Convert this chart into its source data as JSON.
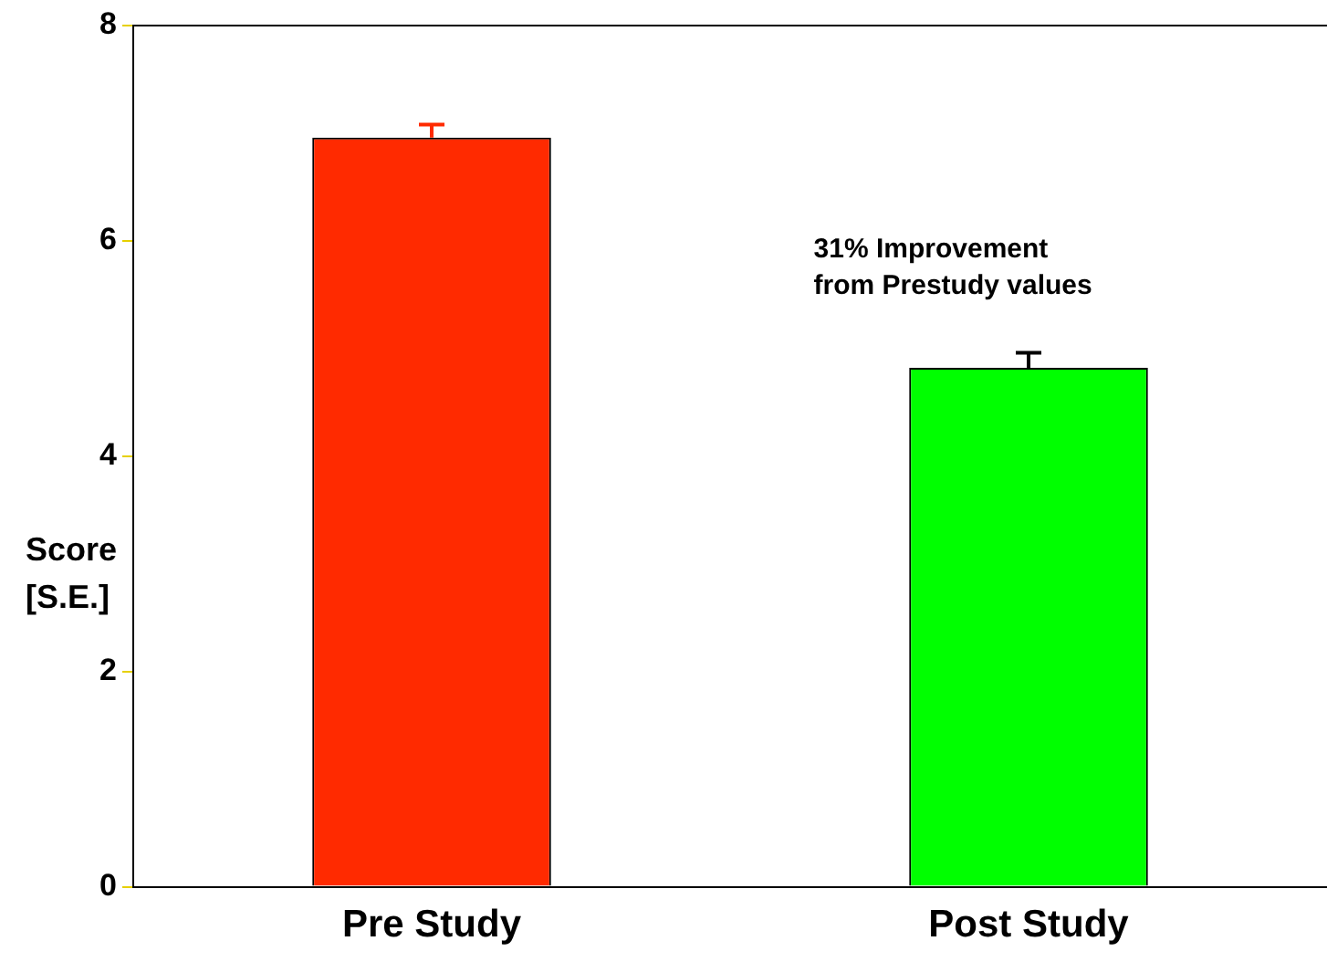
{
  "chart_data": {
    "type": "bar",
    "ylabel": "Score\n[S.E.]",
    "categories": [
      "Pre Study",
      "Post Study"
    ],
    "values": [
      6.96,
      4.82
    ],
    "colors": [
      "#ff2a00",
      "#00ff00"
    ],
    "errors": [
      [
        6.96,
        7.08
      ],
      [
        4.82,
        4.96
      ]
    ],
    "ylim": [
      0,
      8
    ],
    "yticks": [
      0,
      2,
      4,
      6,
      8
    ],
    "grid": false,
    "legend": false,
    "annotations": [
      "31% Improvement\nfrom Prestudy values"
    ]
  }
}
